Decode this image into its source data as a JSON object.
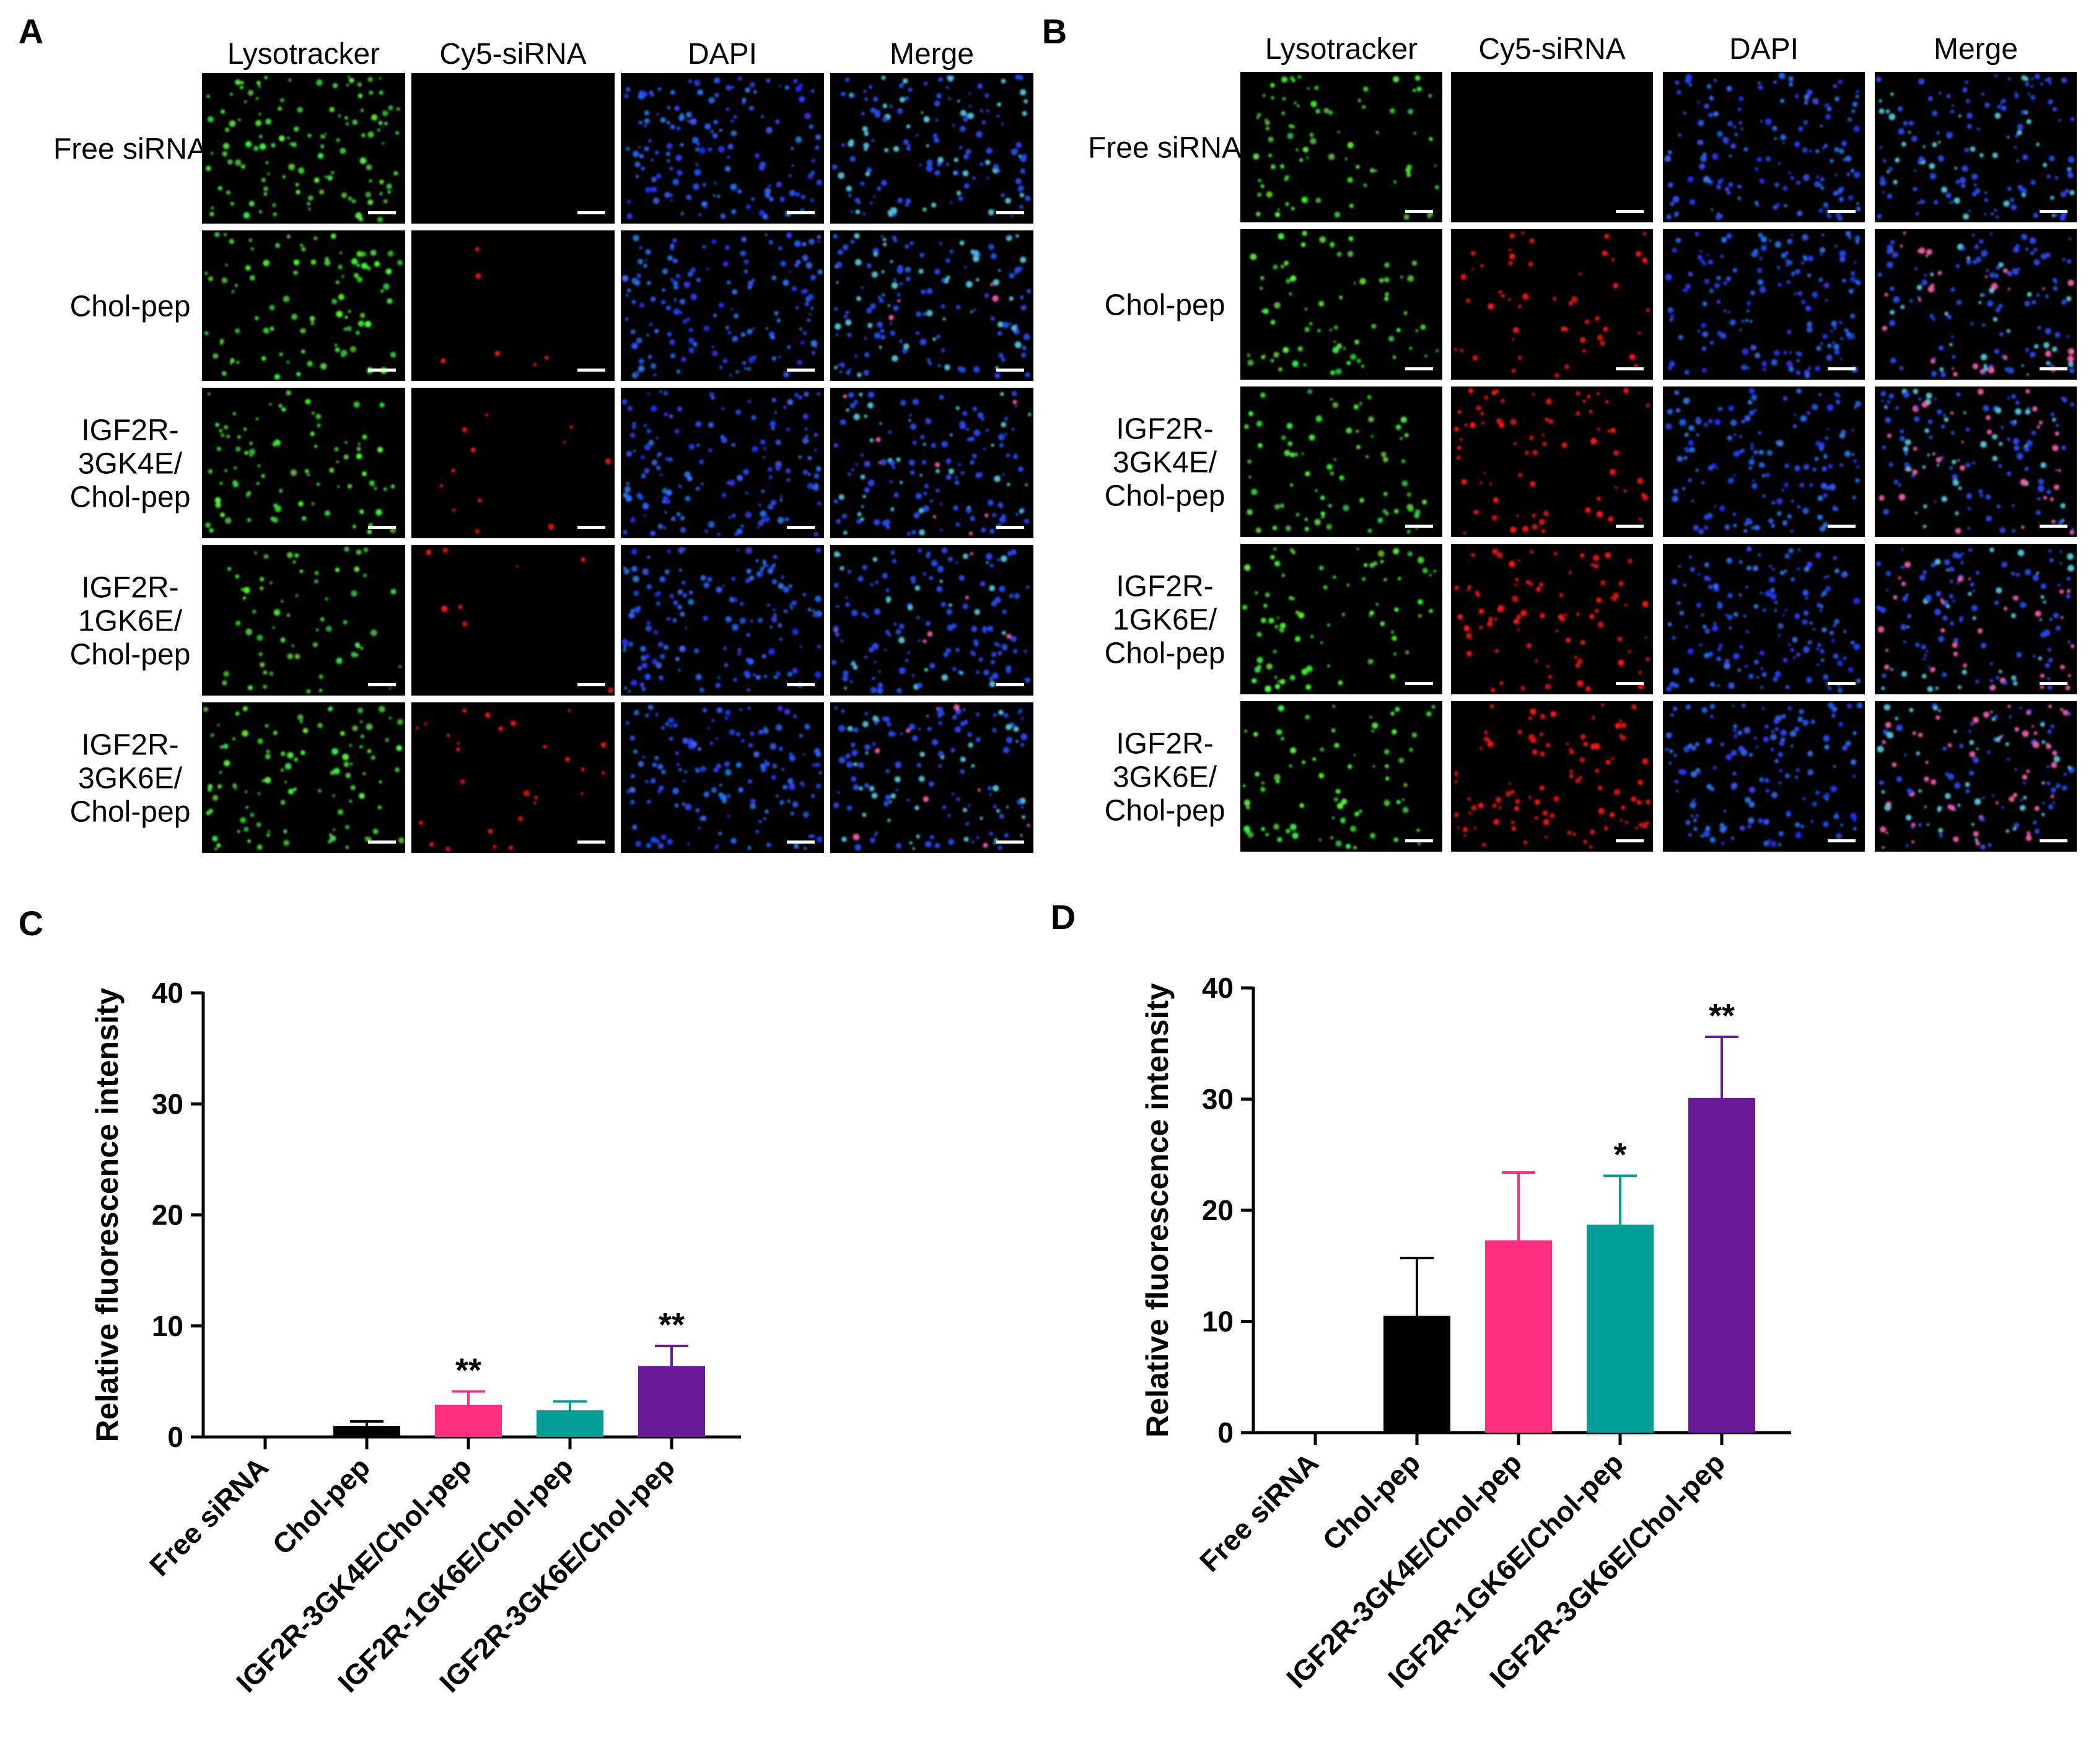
{
  "panel_letters": [
    "A",
    "B",
    "C",
    "D"
  ],
  "microscopy": [
    {
      "panel": "A",
      "columns": [
        "Lysotracker",
        "Cy5-siRNA",
        "DAPI",
        "Merge"
      ],
      "rows": [
        {
          "label_lines": [
            "Free siRNA"
          ],
          "red_level": 0.0,
          "green_level": 0.85
        },
        {
          "label_lines": [
            "Chol-pep"
          ],
          "red_level": 0.06,
          "green_level": 0.6
        },
        {
          "label_lines": [
            "IGF2R-",
            "3GK4E/",
            "Chol-pep"
          ],
          "red_level": 0.15,
          "green_level": 0.55
        },
        {
          "label_lines": [
            "IGF2R-",
            "1GK6E/",
            "Chol-pep"
          ],
          "red_level": 0.12,
          "green_level": 0.45
        },
        {
          "label_lines": [
            "IGF2R-",
            "3GK6E/",
            "Chol-pep"
          ],
          "red_level": 0.25,
          "green_level": 0.7
        }
      ]
    },
    {
      "panel": "B",
      "columns": [
        "Lysotracker",
        "Cy5-siRNA",
        "DAPI",
        "Merge"
      ],
      "rows": [
        {
          "label_lines": [
            "Free siRNA"
          ],
          "red_level": 0.0,
          "green_level": 0.55
        },
        {
          "label_lines": [
            "Chol-pep"
          ],
          "red_level": 0.5,
          "green_level": 0.5
        },
        {
          "label_lines": [
            "IGF2R-",
            "3GK4E/",
            "Chol-pep"
          ],
          "red_level": 0.75,
          "green_level": 0.5
        },
        {
          "label_lines": [
            "IGF2R-",
            "1GK6E/",
            "Chol-pep"
          ],
          "red_level": 0.8,
          "green_level": 0.55
        },
        {
          "label_lines": [
            "IGF2R-",
            "3GK6E/",
            "Chol-pep"
          ],
          "red_level": 0.95,
          "green_level": 0.5
        }
      ]
    }
  ],
  "chart_data": [
    {
      "panel": "C",
      "type": "bar",
      "title": "",
      "xlabel": "",
      "ylabel": "Relative fluorescence intensity",
      "ylim": [
        0,
        40
      ],
      "yticks": [
        0,
        10,
        20,
        30,
        40
      ],
      "categories": [
        "Free siRNA",
        "Chol-pep",
        "IGF2R-3GK4E/Chol-pep",
        "IGF2R-1GK6E/Chol-pep",
        "IGF2R-3GK6E/Chol-pep"
      ],
      "values": [
        0,
        1.0,
        2.9,
        2.4,
        6.4
      ],
      "errors": [
        0,
        0.4,
        1.2,
        0.8,
        1.8
      ],
      "colors": [
        "#000000",
        "#000000",
        "#ff2d7f",
        "#009e96",
        "#6a1b9a"
      ],
      "significance": [
        "",
        "",
        "**",
        "",
        "**"
      ],
      "grid": false,
      "legend": "none"
    },
    {
      "panel": "D",
      "type": "bar",
      "title": "",
      "xlabel": "",
      "ylabel": "Relative fluorescence intensity",
      "ylim": [
        0,
        40
      ],
      "yticks": [
        0,
        10,
        20,
        30,
        40
      ],
      "categories": [
        "Free siRNA",
        "Chol-pep",
        "IGF2R-3GK4E/Chol-pep",
        "IGF2R-1GK6E/Chol-pep",
        "IGF2R-3GK6E/Chol-pep"
      ],
      "values": [
        0,
        10.5,
        17.3,
        18.7,
        30.1
      ],
      "errors": [
        0,
        5.2,
        6.1,
        4.4,
        5.5
      ],
      "colors": [
        "#000000",
        "#000000",
        "#ff2d7f",
        "#009e96",
        "#6a1b9a"
      ],
      "significance": [
        "",
        "",
        "",
        "*",
        "**"
      ],
      "grid": false,
      "legend": "none"
    }
  ]
}
